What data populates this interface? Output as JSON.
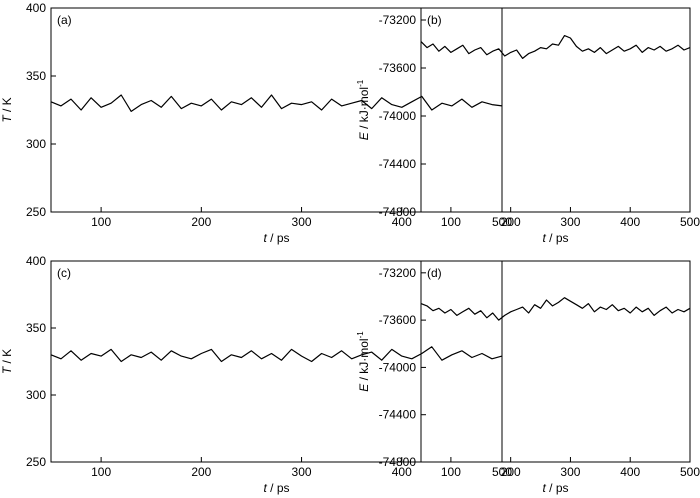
{
  "colors": {
    "line": "#000000",
    "axes": "#000000",
    "background": "#ffffff"
  },
  "chart_data": [
    {
      "id": "a",
      "type": "line",
      "panel_label": "(a)",
      "xlabel_var": "t",
      "xlabel_unit": " / ps",
      "ylabel_var": "T",
      "ylabel_unit": " / K",
      "xlim": [
        50,
        500
      ],
      "ylim": [
        250,
        400
      ],
      "xticks": [
        100,
        200,
        300,
        400,
        500
      ],
      "yticks": [
        250,
        300,
        350,
        400
      ],
      "series": [
        {
          "x": [
            50,
            60,
            70,
            80,
            90,
            100,
            110,
            120,
            130,
            140,
            150,
            160,
            170,
            180,
            190,
            200,
            210,
            220,
            230,
            240,
            250,
            260,
            270,
            280,
            290,
            300,
            310,
            320,
            330,
            340,
            350,
            360,
            370,
            380,
            390,
            400,
            410,
            420,
            430,
            440,
            450,
            460,
            470,
            480,
            490,
            500
          ],
          "y": [
            331,
            328,
            333,
            325,
            334,
            327,
            330,
            336,
            324,
            329,
            332,
            327,
            335,
            326,
            330,
            328,
            333,
            325,
            331,
            329,
            334,
            327,
            336,
            326,
            330,
            329,
            331,
            325,
            333,
            328,
            330,
            332,
            326,
            334,
            329,
            327,
            331,
            335,
            325,
            330,
            328,
            333,
            327,
            331,
            329,
            328
          ]
        }
      ]
    },
    {
      "id": "b",
      "type": "line",
      "panel_label": "(b)",
      "xlabel_var": "t",
      "xlabel_unit": " / ps",
      "ylabel_var": "E",
      "ylabel_unit": " / kJ·mol",
      "ylabel_sup": "-1",
      "xlim": [
        50,
        500
      ],
      "ylim": [
        -74800,
        -73100
      ],
      "xticks": [
        100,
        200,
        300,
        400,
        500
      ],
      "yticks": [
        -74800,
        -74400,
        -74000,
        -73600,
        -73200
      ],
      "series": [
        {
          "x": [
            50,
            60,
            70,
            80,
            90,
            100,
            110,
            120,
            130,
            140,
            150,
            160,
            170,
            180,
            190,
            200,
            210,
            220,
            230,
            240,
            250,
            260,
            270,
            280,
            290,
            300,
            310,
            320,
            330,
            340,
            350,
            360,
            370,
            380,
            390,
            400,
            410,
            420,
            430,
            440,
            450,
            460,
            470,
            480,
            490,
            500
          ],
          "y": [
            -73380,
            -73430,
            -73400,
            -73460,
            -73420,
            -73470,
            -73440,
            -73410,
            -73480,
            -73450,
            -73430,
            -73490,
            -73460,
            -73440,
            -73500,
            -73470,
            -73450,
            -73520,
            -73480,
            -73460,
            -73430,
            -73440,
            -73400,
            -73410,
            -73330,
            -73350,
            -73420,
            -73460,
            -73440,
            -73470,
            -73430,
            -73480,
            -73450,
            -73420,
            -73460,
            -73440,
            -73410,
            -73470,
            -73430,
            -73450,
            -73420,
            -73460,
            -73440,
            -73410,
            -73450,
            -73430
          ]
        }
      ]
    },
    {
      "id": "c",
      "type": "line",
      "panel_label": "(c)",
      "xlabel_var": "t",
      "xlabel_unit": " / ps",
      "ylabel_var": "T",
      "ylabel_unit": " / K",
      "xlim": [
        50,
        500
      ],
      "ylim": [
        250,
        400
      ],
      "xticks": [
        100,
        200,
        300,
        400,
        500
      ],
      "yticks": [
        250,
        300,
        350,
        400
      ],
      "series": [
        {
          "x": [
            50,
            60,
            70,
            80,
            90,
            100,
            110,
            120,
            130,
            140,
            150,
            160,
            170,
            180,
            190,
            200,
            210,
            220,
            230,
            240,
            250,
            260,
            270,
            280,
            290,
            300,
            310,
            320,
            330,
            340,
            350,
            360,
            370,
            380,
            390,
            400,
            410,
            420,
            430,
            440,
            450,
            460,
            470,
            480,
            490,
            500
          ],
          "y": [
            330,
            327,
            333,
            326,
            331,
            329,
            334,
            325,
            330,
            328,
            332,
            326,
            333,
            329,
            327,
            331,
            334,
            325,
            330,
            328,
            333,
            327,
            331,
            326,
            334,
            329,
            325,
            331,
            328,
            333,
            327,
            330,
            332,
            326,
            334,
            329,
            327,
            331,
            336,
            326,
            330,
            333,
            328,
            331,
            327,
            329
          ]
        }
      ]
    },
    {
      "id": "d",
      "type": "line",
      "panel_label": "(d)",
      "xlabel_var": "t",
      "xlabel_unit": " / ps",
      "ylabel_var": "E",
      "ylabel_unit": " / kJ·mol",
      "ylabel_sup": "-1",
      "xlim": [
        50,
        500
      ],
      "ylim": [
        -74800,
        -73100
      ],
      "xticks": [
        100,
        200,
        300,
        400,
        500
      ],
      "yticks": [
        -74800,
        -74400,
        -74000,
        -73600,
        -73200
      ],
      "series": [
        {
          "x": [
            50,
            60,
            70,
            80,
            90,
            100,
            110,
            120,
            130,
            140,
            150,
            160,
            170,
            180,
            190,
            200,
            210,
            220,
            230,
            240,
            250,
            260,
            270,
            280,
            290,
            300,
            310,
            320,
            330,
            340,
            350,
            360,
            370,
            380,
            390,
            400,
            410,
            420,
            430,
            440,
            450,
            460,
            470,
            480,
            490,
            500
          ],
          "y": [
            -73460,
            -73480,
            -73520,
            -73500,
            -73540,
            -73510,
            -73560,
            -73530,
            -73500,
            -73550,
            -73520,
            -73580,
            -73540,
            -73600,
            -73560,
            -73530,
            -73510,
            -73490,
            -73540,
            -73470,
            -73500,
            -73430,
            -73480,
            -73450,
            -73410,
            -73440,
            -73470,
            -73500,
            -73460,
            -73530,
            -73490,
            -73510,
            -73470,
            -73520,
            -73500,
            -73540,
            -73490,
            -73530,
            -73500,
            -73560,
            -73520,
            -73490,
            -73540,
            -73510,
            -73530,
            -73500
          ]
        }
      ]
    }
  ]
}
